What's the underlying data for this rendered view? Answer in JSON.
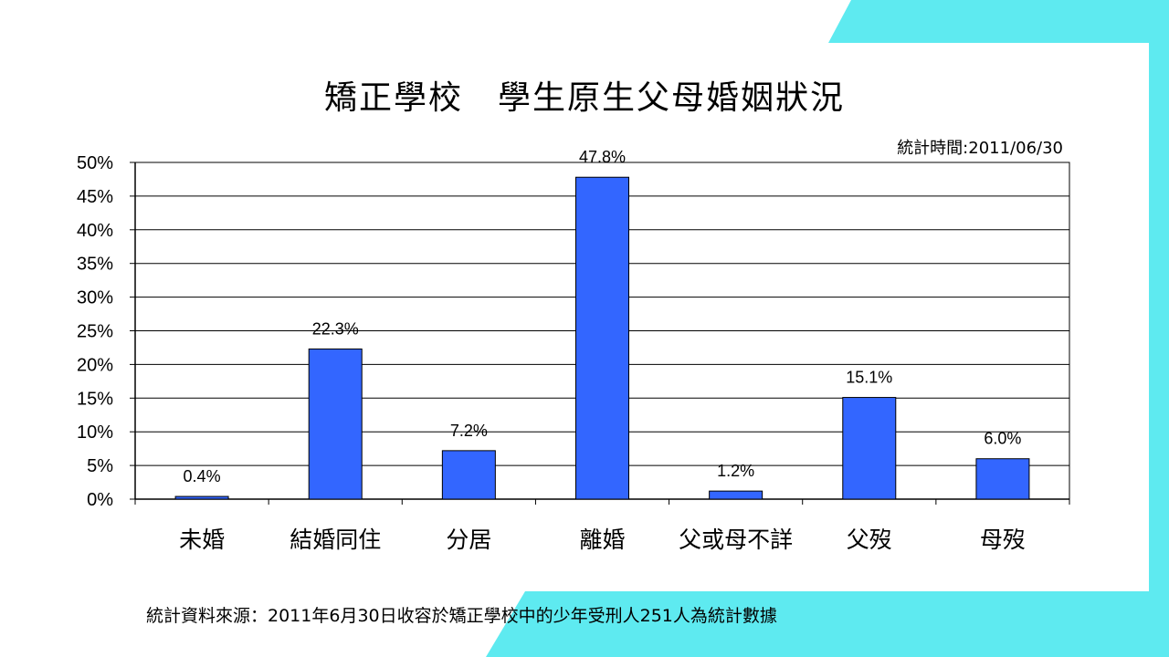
{
  "colors": {
    "accent": "#5EEAF0",
    "bar": "#3366FF",
    "background": "#FFFFFF"
  },
  "title": "矯正學校　學生原生父母婚姻狀況",
  "stat_time": "統計時間:2011/06/30",
  "source": "統計資料來源：2011年6月30日收容於矯正學校中的少年受刑人251人為統計數據",
  "chart_data": {
    "type": "bar",
    "title": "矯正學校　學生原生父母婚姻狀況",
    "xlabel": "",
    "ylabel": "",
    "categories": [
      "未婚",
      "結婚同住",
      "分居",
      "離婚",
      "父或母不詳",
      "父歿",
      "母歿"
    ],
    "values": [
      0.4,
      22.3,
      7.2,
      47.8,
      1.2,
      15.1,
      6.0
    ],
    "data_labels": [
      "0.4%",
      "22.3%",
      "7.2%",
      "47.8%",
      "1.2%",
      "15.1%",
      "6.0%"
    ],
    "ylim": [
      0,
      50
    ],
    "yticks": [
      "0%",
      "5%",
      "10%",
      "15%",
      "20%",
      "25%",
      "30%",
      "35%",
      "40%",
      "45%",
      "50%"
    ],
    "grid": true,
    "legend": "none"
  }
}
